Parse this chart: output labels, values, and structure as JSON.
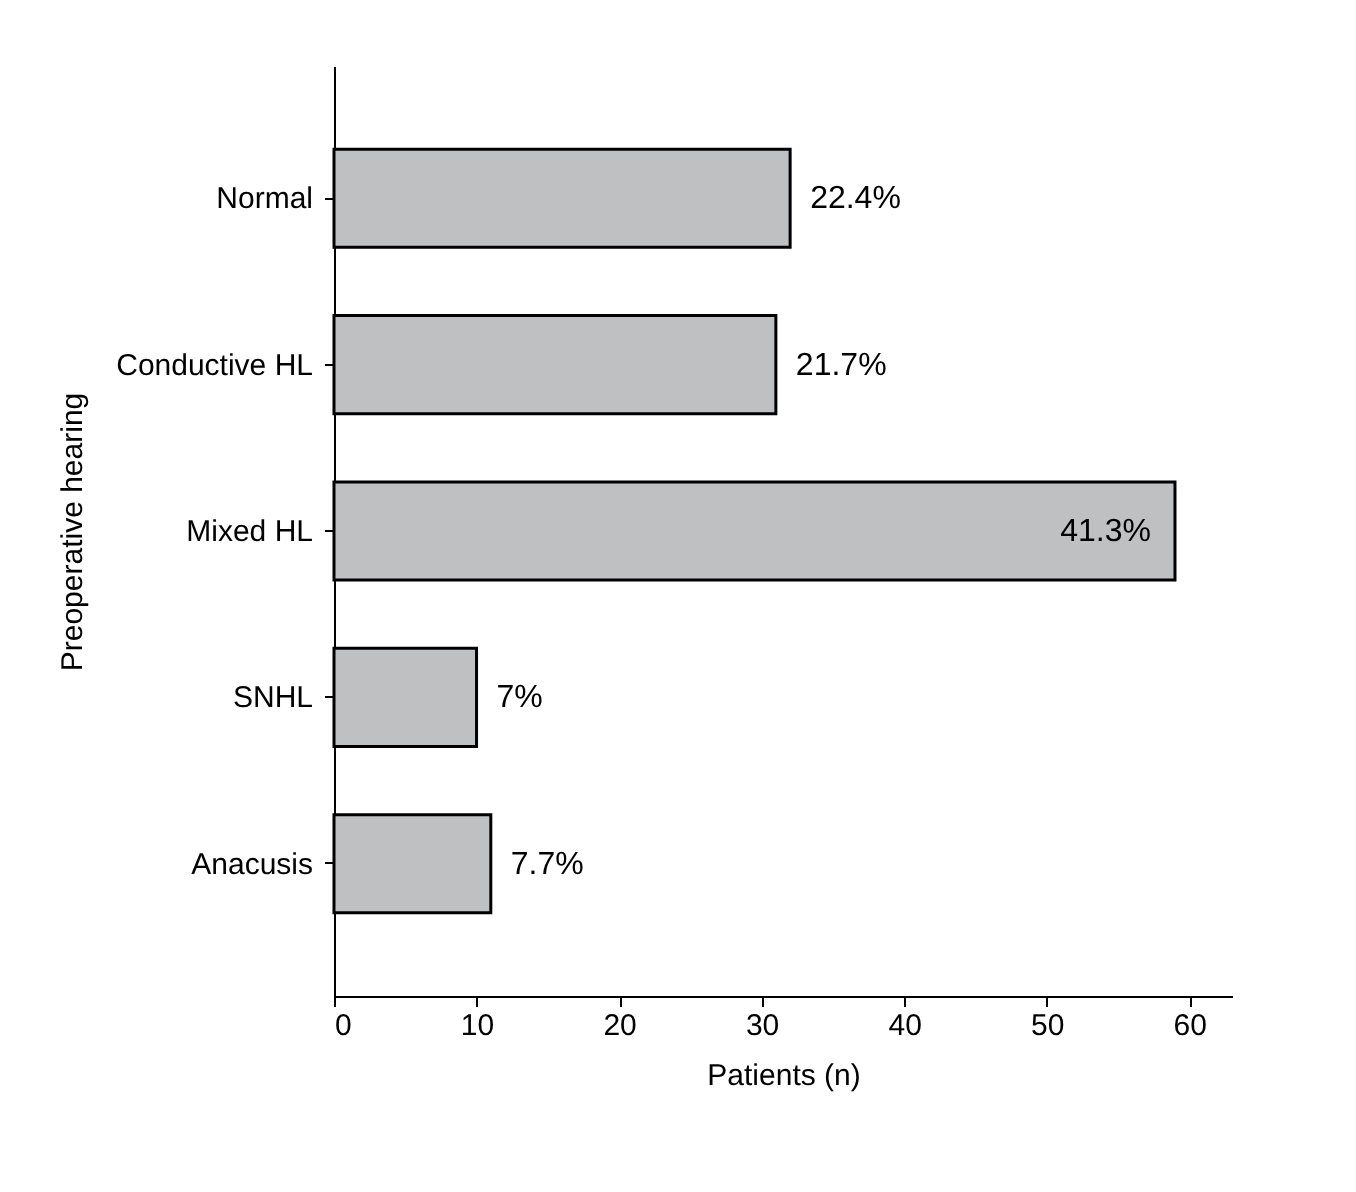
{
  "chart_data": {
    "type": "bar",
    "orientation": "horizontal",
    "categories": [
      "Normal",
      "Conductive HL",
      "Mixed HL",
      "SNHL",
      "Anacusis"
    ],
    "values": [
      32,
      31,
      59,
      10,
      11
    ],
    "annotations": [
      {
        "text": "22.4%",
        "x": 32,
        "y": "Normal"
      },
      {
        "text": "21.7%",
        "x": 31,
        "y": "Conductive HL"
      },
      {
        "text": "41.3%",
        "x": 59,
        "y": "Mixed HL"
      },
      {
        "text": "7%",
        "x": 10,
        "y": "SNHL"
      },
      {
        "text": "7.7%",
        "x": 11,
        "y": "Anacusis"
      }
    ],
    "color": "#bfc0c2",
    "xlim": [
      0,
      63
    ],
    "xticks": [
      0,
      10,
      20,
      30,
      40,
      50,
      60
    ],
    "xlabel": "Patients (n)",
    "ylabel": "Preoperative hearing"
  }
}
